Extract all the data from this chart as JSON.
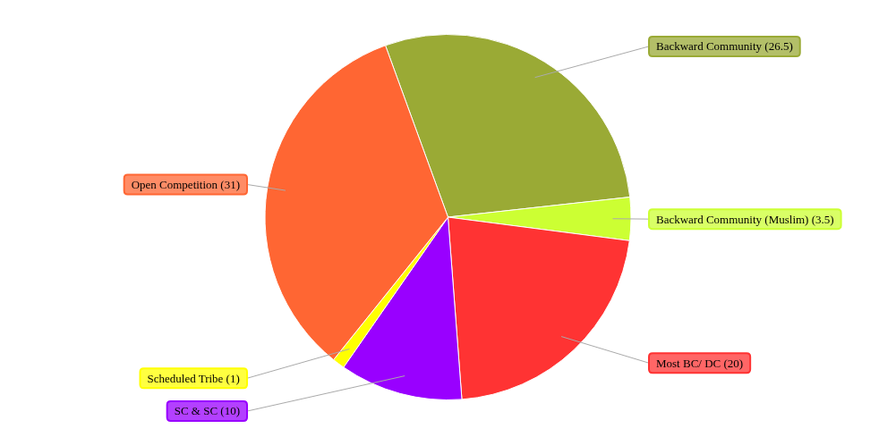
{
  "chart_data": {
    "type": "pie",
    "categories": [
      "Backward Community (26.5)",
      "Backward Community (Muslim) (3.5)",
      "Most BC/ DC (20)",
      "SC & SC (10)",
      "Scheduled Tribe (1)",
      "Open Competition (31)"
    ],
    "values": [
      26.5,
      3.5,
      20,
      10,
      1,
      31
    ],
    "colors": [
      "#9aaa35",
      "#ccff33",
      "#ff3333",
      "#9900ff",
      "#ffff00",
      "#ff6633"
    ],
    "legend": false
  }
}
